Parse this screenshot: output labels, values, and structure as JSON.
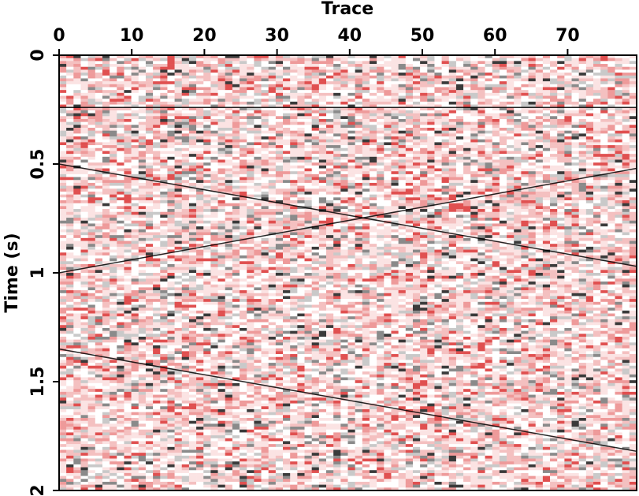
{
  "chart_data": {
    "type": "image",
    "x_label": "Trace",
    "y_label": "Time (s)",
    "xlim": [
      0,
      79.5
    ],
    "ylim": [
      0,
      2
    ],
    "y_inverted": true,
    "x_axis_position": "top",
    "xticks": [
      0,
      10,
      20,
      30,
      40,
      50,
      60,
      70
    ],
    "yticks": [
      0,
      0.5,
      1,
      1.5,
      2
    ],
    "colormap": [
      "#ffffff",
      "#fbe3e3",
      "#f4c0c0",
      "#ee9a9a",
      "#e05050",
      "#c9c9c9",
      "#8a8a8a",
      "#3a3a3a"
    ],
    "event_color": "#000000",
    "events": [
      {
        "x": [
          0,
          79.5
        ],
        "y": [
          0.24,
          0.24
        ]
      },
      {
        "x": [
          0,
          79.5
        ],
        "y": [
          0.5,
          0.97
        ]
      },
      {
        "x": [
          0,
          79.5
        ],
        "y": [
          1.0,
          0.52
        ]
      },
      {
        "x": [
          0,
          79.5
        ],
        "y": [
          1.35,
          1.82
        ]
      }
    ]
  }
}
